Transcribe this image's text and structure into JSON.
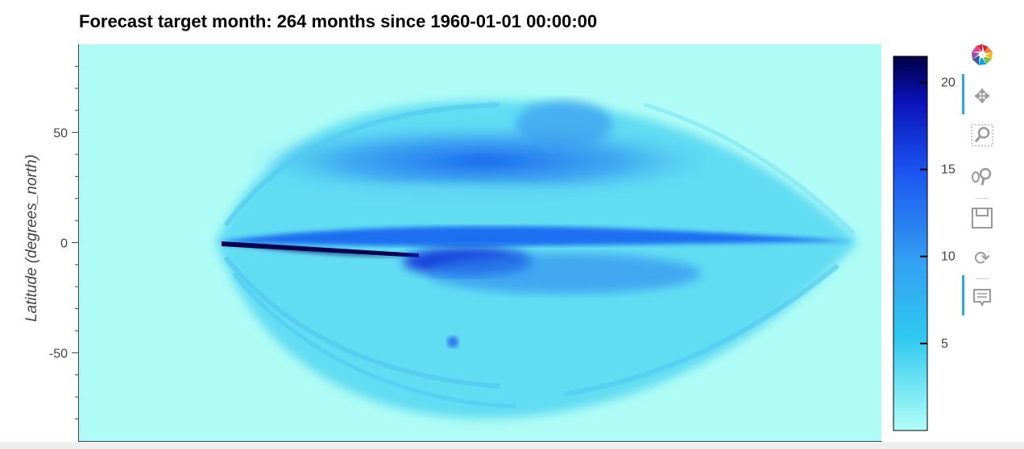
{
  "chart_data": {
    "type": "heatmap",
    "title": "Forecast target month: 264 months since 1960-01-01 00:00:00",
    "ylabel": "Latitude (degrees_north)",
    "xlabel": "",
    "yticks": [
      {
        "value": 50,
        "label": "50"
      },
      {
        "value": 0,
        "label": "0"
      },
      {
        "value": -50,
        "label": "-50"
      }
    ],
    "ylim": [
      -90,
      90
    ],
    "colorbar": {
      "ticks": [
        {
          "value": 20,
          "label": "20"
        },
        {
          "value": 15,
          "label": "15"
        },
        {
          "value": 10,
          "label": "10"
        },
        {
          "value": 5,
          "label": "5"
        }
      ],
      "range": [
        0,
        21.5
      ],
      "colors": [
        "#b0fef8",
        "#2ec8ef",
        "#1a52f0",
        "#000044"
      ]
    }
  },
  "toolbar": {
    "tools": [
      {
        "name": "bokeh-logo",
        "icon": "bokeh-logo-icon",
        "active": false
      },
      {
        "name": "pan",
        "icon": "pan-icon",
        "active": true
      },
      {
        "name": "box-zoom",
        "icon": "box-zoom-icon",
        "active": false
      },
      {
        "name": "wheel-zoom",
        "icon": "wheel-zoom-icon",
        "active": false
      },
      {
        "name": "save",
        "icon": "save-icon",
        "active": false
      },
      {
        "name": "reset",
        "icon": "reset-icon",
        "active": false
      },
      {
        "name": "hover",
        "icon": "hover-icon",
        "active": true
      }
    ]
  }
}
